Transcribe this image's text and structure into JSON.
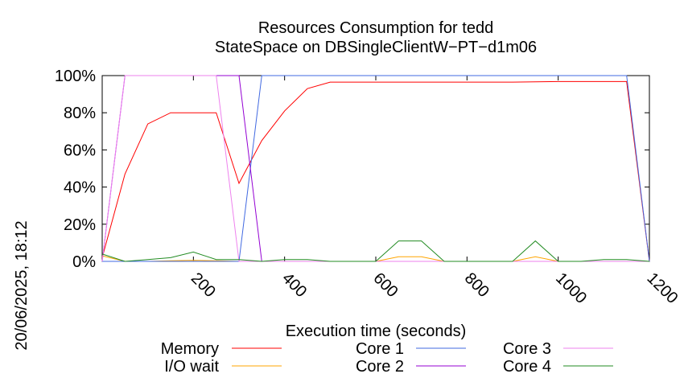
{
  "chart_data": {
    "type": "line",
    "title": "Resources Consumption for tedd",
    "subtitle": "StateSpace on DBSingleClientW−PT−d1m06",
    "xlabel": "Execution time (seconds)",
    "ylabel": "",
    "side_label": "20/06/2025, 18:12",
    "xlim": [
      0,
      1200
    ],
    "ylim": [
      0,
      100
    ],
    "x_ticks": [
      200,
      400,
      600,
      800,
      1000,
      1200
    ],
    "x_tick_labels": [
      "200",
      "400",
      "600",
      "800",
      "1000",
      "1200"
    ],
    "y_ticks": [
      0,
      20,
      40,
      60,
      80,
      100
    ],
    "y_tick_labels": [
      "0%",
      "20%",
      "40%",
      "60%",
      "80%",
      "100%"
    ],
    "legend_position": "bottom",
    "series": [
      {
        "name": "Memory",
        "color": "#ff0000",
        "x": [
          0,
          50,
          100,
          150,
          200,
          250,
          300,
          350,
          400,
          450,
          500,
          600,
          700,
          800,
          900,
          1000,
          1100,
          1150,
          1200
        ],
        "y": [
          2,
          47,
          74,
          80,
          80,
          80,
          42,
          65,
          81,
          93,
          96.5,
          96.5,
          96.5,
          96.5,
          96.5,
          96.8,
          96.8,
          96.8,
          0
        ]
      },
      {
        "name": "I/O wait",
        "color": "#ffa500",
        "x": [
          0,
          50,
          100,
          150,
          200,
          250,
          300,
          350,
          400,
          600,
          650,
          700,
          750,
          900,
          950,
          1000,
          1200
        ],
        "y": [
          3,
          0,
          0,
          0.3,
          0.5,
          0.3,
          0,
          0,
          0,
          0,
          2.5,
          2.5,
          0,
          0,
          2.5,
          0,
          0
        ]
      },
      {
        "name": "Core 1",
        "color": "#4169e1",
        "x": [
          0,
          50,
          100,
          200,
          250,
          300,
          350,
          400,
          500,
          600,
          700,
          800,
          900,
          1000,
          1100,
          1150,
          1200
        ],
        "y": [
          0,
          0,
          0,
          0,
          0,
          0,
          100,
          100,
          100,
          100,
          100,
          100,
          100,
          100,
          100,
          100,
          0
        ]
      },
      {
        "name": "Core 2",
        "color": "#9400d3",
        "x": [
          0,
          50,
          100,
          150,
          200,
          250,
          300,
          350,
          400,
          1150,
          1200
        ],
        "y": [
          0,
          100,
          100,
          100,
          100,
          100,
          100,
          0,
          0,
          0,
          0
        ]
      },
      {
        "name": "Core 3",
        "color": "#ee82ee",
        "x": [
          0,
          50,
          100,
          150,
          200,
          250,
          300,
          350,
          400,
          1150,
          1200
        ],
        "y": [
          0,
          100,
          100,
          100,
          100,
          100,
          0,
          0,
          0,
          0,
          0
        ]
      },
      {
        "name": "Core 4",
        "color": "#228b22",
        "x": [
          0,
          50,
          100,
          150,
          200,
          250,
          300,
          350,
          400,
          450,
          500,
          600,
          650,
          700,
          750,
          900,
          950,
          1000,
          1050,
          1100,
          1150,
          1200
        ],
        "y": [
          4,
          0,
          1,
          2,
          5,
          1,
          1,
          0,
          1,
          1,
          0,
          0,
          11,
          11,
          0,
          0,
          11,
          0,
          0,
          1,
          1,
          0
        ]
      }
    ]
  }
}
